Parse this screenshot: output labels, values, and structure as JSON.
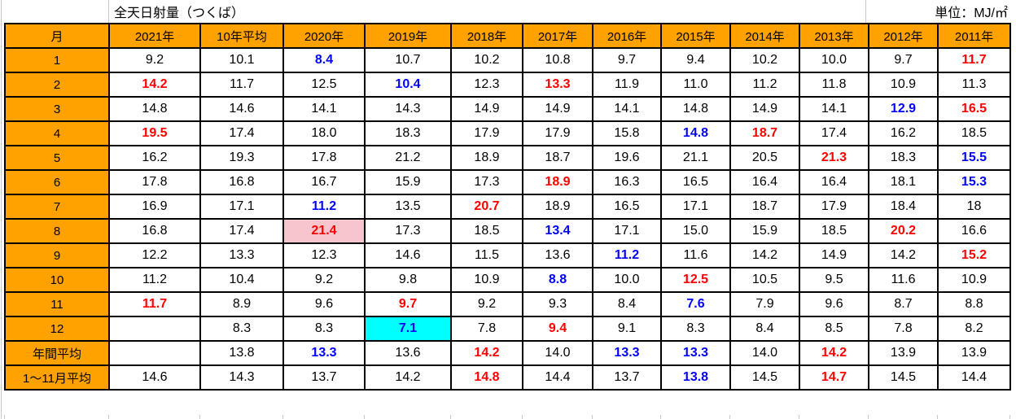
{
  "title": "全天日射量（つくば）",
  "unit_label": "単位：MJ/㎡",
  "colors": {
    "header_bg": "#FFA200",
    "red_value": "#FF0000",
    "blue_value": "#0000FF",
    "highlight_pink": "#F7C5CE",
    "highlight_cyan": "#00FFFF"
  },
  "columns": [
    "月",
    "2021年",
    "10年平均",
    "2020年",
    "2019年",
    "2018年",
    "2017年",
    "2016年",
    "2015年",
    "2014年",
    "2013年",
    "2012年",
    "2011年"
  ],
  "rows": [
    {
      "label": "1",
      "cells": [
        {
          "v": "9.2"
        },
        {
          "v": "10.1"
        },
        {
          "v": "8.4",
          "c": "blue"
        },
        {
          "v": "10.7"
        },
        {
          "v": "10.2"
        },
        {
          "v": "10.8"
        },
        {
          "v": "9.7"
        },
        {
          "v": "9.4"
        },
        {
          "v": "10.2"
        },
        {
          "v": "10.0"
        },
        {
          "v": "9.7"
        },
        {
          "v": "11.7",
          "c": "red"
        }
      ]
    },
    {
      "label": "2",
      "cells": [
        {
          "v": "14.2",
          "c": "red"
        },
        {
          "v": "11.7"
        },
        {
          "v": "12.5"
        },
        {
          "v": "10.4",
          "c": "blue"
        },
        {
          "v": "12.3"
        },
        {
          "v": "13.3",
          "c": "red"
        },
        {
          "v": "11.9"
        },
        {
          "v": "11.0"
        },
        {
          "v": "11.2"
        },
        {
          "v": "11.8"
        },
        {
          "v": "10.9"
        },
        {
          "v": "11.3"
        }
      ]
    },
    {
      "label": "3",
      "cells": [
        {
          "v": "14.8"
        },
        {
          "v": "14.6"
        },
        {
          "v": "14.1"
        },
        {
          "v": "14.3"
        },
        {
          "v": "14.9"
        },
        {
          "v": "14.9"
        },
        {
          "v": "14.1"
        },
        {
          "v": "14.8"
        },
        {
          "v": "14.9"
        },
        {
          "v": "14.1"
        },
        {
          "v": "12.9",
          "c": "blue"
        },
        {
          "v": "16.5",
          "c": "red"
        }
      ]
    },
    {
      "label": "4",
      "cells": [
        {
          "v": "19.5",
          "c": "red"
        },
        {
          "v": "17.4"
        },
        {
          "v": "18.0"
        },
        {
          "v": "18.3"
        },
        {
          "v": "17.9"
        },
        {
          "v": "17.9"
        },
        {
          "v": "15.8"
        },
        {
          "v": "14.8",
          "c": "blue"
        },
        {
          "v": "18.7",
          "c": "red"
        },
        {
          "v": "17.4"
        },
        {
          "v": "16.2"
        },
        {
          "v": "18.5"
        }
      ]
    },
    {
      "label": "5",
      "cells": [
        {
          "v": "16.2"
        },
        {
          "v": "19.3"
        },
        {
          "v": "17.8"
        },
        {
          "v": "21.2"
        },
        {
          "v": "18.9"
        },
        {
          "v": "18.7"
        },
        {
          "v": "19.6"
        },
        {
          "v": "21.1"
        },
        {
          "v": "20.5"
        },
        {
          "v": "21.3",
          "c": "red"
        },
        {
          "v": "18.3"
        },
        {
          "v": "15.5",
          "c": "blue"
        }
      ]
    },
    {
      "label": "6",
      "cells": [
        {
          "v": "17.8"
        },
        {
          "v": "16.8"
        },
        {
          "v": "16.7"
        },
        {
          "v": "15.9"
        },
        {
          "v": "17.3"
        },
        {
          "v": "18.9",
          "c": "red"
        },
        {
          "v": "16.3"
        },
        {
          "v": "16.5"
        },
        {
          "v": "16.4"
        },
        {
          "v": "16.4"
        },
        {
          "v": "18.1"
        },
        {
          "v": "15.3",
          "c": "blue"
        }
      ]
    },
    {
      "label": "7",
      "cells": [
        {
          "v": "16.9"
        },
        {
          "v": "17.1"
        },
        {
          "v": "11.2",
          "c": "blue"
        },
        {
          "v": "13.5"
        },
        {
          "v": "20.7",
          "c": "red"
        },
        {
          "v": "18.9"
        },
        {
          "v": "16.5"
        },
        {
          "v": "17.1"
        },
        {
          "v": "18.7"
        },
        {
          "v": "17.9"
        },
        {
          "v": "18.4"
        },
        {
          "v": "18"
        }
      ]
    },
    {
      "label": "8",
      "cells": [
        {
          "v": "16.8"
        },
        {
          "v": "17.4"
        },
        {
          "v": "21.4",
          "c": "red",
          "bg": "pink"
        },
        {
          "v": "17.3"
        },
        {
          "v": "18.5"
        },
        {
          "v": "13.4",
          "c": "blue"
        },
        {
          "v": "17.1"
        },
        {
          "v": "15.0"
        },
        {
          "v": "15.9"
        },
        {
          "v": "18.5"
        },
        {
          "v": "20.2",
          "c": "red"
        },
        {
          "v": "16.6"
        }
      ]
    },
    {
      "label": "9",
      "cells": [
        {
          "v": "12.2"
        },
        {
          "v": "13.3"
        },
        {
          "v": "12.3"
        },
        {
          "v": "14.6"
        },
        {
          "v": "11.5"
        },
        {
          "v": "13.6"
        },
        {
          "v": "11.2",
          "c": "blue"
        },
        {
          "v": "11.6"
        },
        {
          "v": "14.2"
        },
        {
          "v": "14.9"
        },
        {
          "v": "14.2"
        },
        {
          "v": "15.2",
          "c": "red"
        }
      ]
    },
    {
      "label": "10",
      "cells": [
        {
          "v": "11.2"
        },
        {
          "v": "10.4"
        },
        {
          "v": "9.2"
        },
        {
          "v": "9.8"
        },
        {
          "v": "10.9"
        },
        {
          "v": "8.8",
          "c": "blue"
        },
        {
          "v": "10.0"
        },
        {
          "v": "12.5",
          "c": "red"
        },
        {
          "v": "10.5"
        },
        {
          "v": "9.5"
        },
        {
          "v": "11.6"
        },
        {
          "v": "10.9"
        }
      ]
    },
    {
      "label": "11",
      "cells": [
        {
          "v": "11.7",
          "c": "red"
        },
        {
          "v": "8.9"
        },
        {
          "v": "9.6"
        },
        {
          "v": "9.7",
          "c": "red"
        },
        {
          "v": "9.2"
        },
        {
          "v": "9.3"
        },
        {
          "v": "8.4"
        },
        {
          "v": "7.6",
          "c": "blue"
        },
        {
          "v": "7.9"
        },
        {
          "v": "9.6"
        },
        {
          "v": "8.7"
        },
        {
          "v": "8.8"
        }
      ]
    },
    {
      "label": "12",
      "cells": [
        {
          "v": ""
        },
        {
          "v": "8.3"
        },
        {
          "v": "8.3"
        },
        {
          "v": "7.1",
          "c": "blue",
          "bg": "cyan"
        },
        {
          "v": "7.8"
        },
        {
          "v": "9.4",
          "c": "red"
        },
        {
          "v": "9.1"
        },
        {
          "v": "8.3"
        },
        {
          "v": "8.4"
        },
        {
          "v": "8.5"
        },
        {
          "v": "7.8"
        },
        {
          "v": "8.2"
        }
      ]
    },
    {
      "label": "年間平均",
      "cells": [
        {
          "v": ""
        },
        {
          "v": "13.8"
        },
        {
          "v": "13.3",
          "c": "blue"
        },
        {
          "v": "13.6"
        },
        {
          "v": "14.2",
          "c": "red"
        },
        {
          "v": "14.0"
        },
        {
          "v": "13.3",
          "c": "blue"
        },
        {
          "v": "13.3",
          "c": "blue"
        },
        {
          "v": "14.0"
        },
        {
          "v": "14.2",
          "c": "red"
        },
        {
          "v": "13.9"
        },
        {
          "v": "13.9"
        }
      ]
    },
    {
      "label": "1〜11月平均",
      "cells": [
        {
          "v": "14.6"
        },
        {
          "v": "14.3"
        },
        {
          "v": "13.7"
        },
        {
          "v": "14.2"
        },
        {
          "v": "14.8",
          "c": "red"
        },
        {
          "v": "14.4"
        },
        {
          "v": "13.7"
        },
        {
          "v": "13.8",
          "c": "blue"
        },
        {
          "v": "14.5"
        },
        {
          "v": "14.7",
          "c": "red"
        },
        {
          "v": "14.5"
        },
        {
          "v": "14.4"
        }
      ]
    }
  ]
}
